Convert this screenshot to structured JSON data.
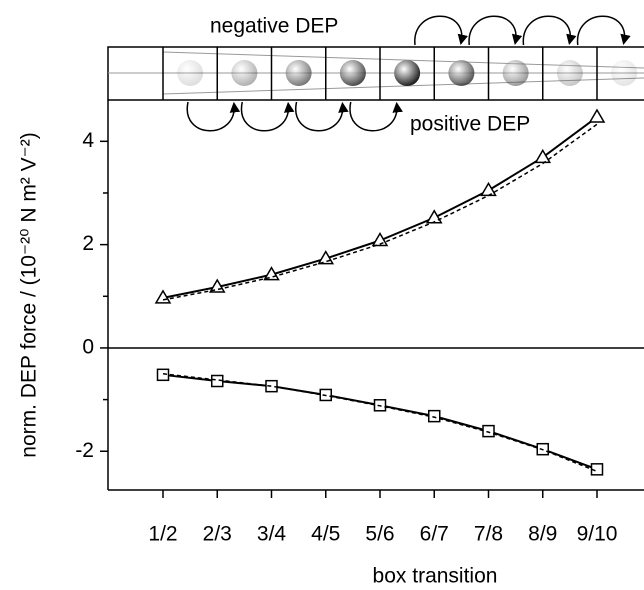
{
  "chart_data": {
    "type": "line",
    "ylabel": "norm. DEP force / (10⁻²⁰ N m² V⁻²)",
    "xlabel": "box transition",
    "annotations": [
      "negative DEP",
      "positive DEP"
    ],
    "categories": [
      "1/2",
      "2/3",
      "3/4",
      "4/5",
      "5/6",
      "6/7",
      "7/8",
      "8/9",
      "9/10"
    ],
    "series": [
      {
        "color": "#000000",
        "marker": "triangle",
        "dash": "solid",
        "values": [
          0.97,
          1.18,
          1.42,
          1.73,
          2.08,
          2.52,
          3.05,
          3.69,
          4.47
        ]
      },
      {
        "color": "#000000",
        "marker": "none",
        "dash": "dashed",
        "values": [
          0.93,
          1.13,
          1.37,
          1.67,
          2.01,
          2.44,
          2.95,
          3.57,
          4.33
        ]
      },
      {
        "color": "#000000",
        "marker": "square",
        "dash": "solid",
        "values": [
          -0.52,
          -0.64,
          -0.74,
          -0.91,
          -1.11,
          -1.32,
          -1.61,
          -1.96,
          -2.35
        ]
      },
      {
        "color": "#000000",
        "marker": "none",
        "dash": "dashed",
        "values": [
          -0.5,
          -0.62,
          -0.74,
          -0.92,
          -1.12,
          -1.34,
          -1.63,
          -1.97,
          -2.39
        ]
      }
    ],
    "ylim": [
      -2.75,
      4.8
    ],
    "yticks": [
      -2,
      0,
      2,
      4
    ],
    "yminorticks": [
      -1,
      1,
      3
    ],
    "zero_line": true
  }
}
